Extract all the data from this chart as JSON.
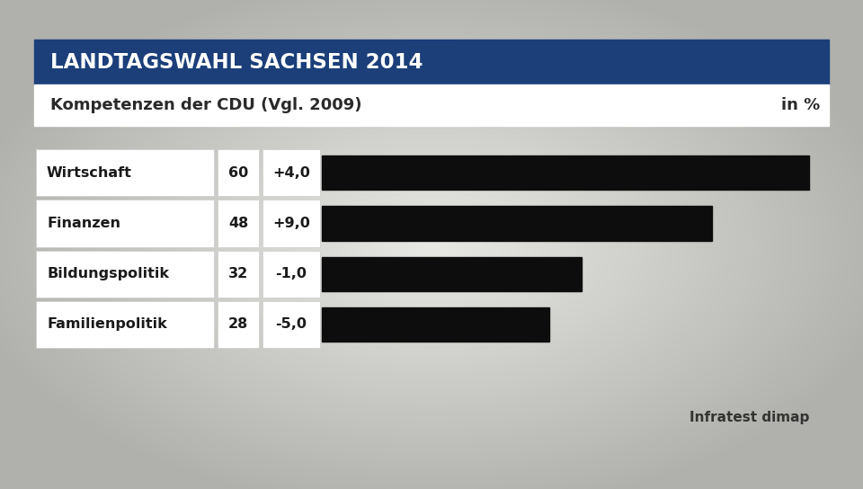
{
  "title": "LANDTAGSWAHL SACHSEN 2014",
  "subtitle": "Kompetenzen der CDU (Vgl. 2009)",
  "subtitle_right": "in %",
  "source": "Infratest dimap",
  "categories": [
    "Wirtschaft",
    "Finanzen",
    "Bildungspolitik",
    "Familienpolitik"
  ],
  "values": [
    60,
    48,
    32,
    28
  ],
  "changes": [
    "+4,0",
    "+9,0",
    "-1,0",
    "-5,0"
  ],
  "bar_color": "#0d0d0d",
  "title_bg_color": "#1c3f7a",
  "title_text_color": "#ffffff",
  "subtitle_bg_color": "#ffffff",
  "subtitle_text_color": "#2a2a2a",
  "label_cell_color": "#ffffff",
  "label_cell_edge": "#cccccc",
  "bar_max": 60,
  "figsize": [
    9.6,
    5.44
  ],
  "dpi": 100
}
